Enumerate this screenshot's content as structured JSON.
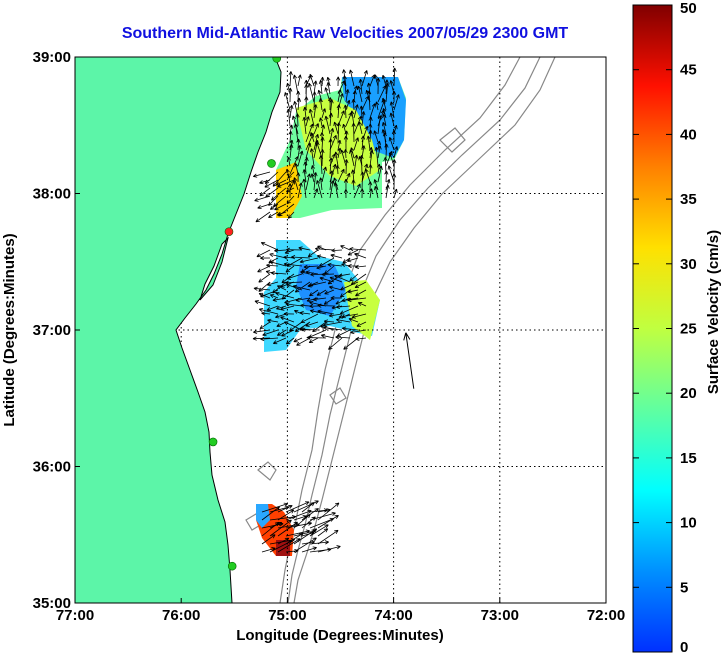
{
  "title": "Southern Mid-Atlantic Raw Velocities 2007/05/29 2300 GMT",
  "xlabel": "Longitude (Degrees:Minutes)",
  "ylabel": "Latitude (Degrees:Minutes)",
  "colorbar_label": "Surface Velocity (cm/s)",
  "x_ticks": [
    {
      "v": -77,
      "label": "77:00"
    },
    {
      "v": -76,
      "label": "76:00"
    },
    {
      "v": -75,
      "label": "75:00"
    },
    {
      "v": -74,
      "label": "74:00"
    },
    {
      "v": -73,
      "label": "73:00"
    },
    {
      "v": -72,
      "label": "72:00"
    }
  ],
  "y_ticks": [
    {
      "v": 35,
      "label": "35:00"
    },
    {
      "v": 36,
      "label": "36:00"
    },
    {
      "v": 37,
      "label": "37:00"
    },
    {
      "v": 38,
      "label": "38:00"
    },
    {
      "v": 39,
      "label": "39:00"
    }
  ],
  "colorbar_ticks": [
    "0",
    "5",
    "10",
    "15",
    "20",
    "25",
    "30",
    "35",
    "40",
    "45",
    "50"
  ],
  "colors": {
    "title": "#1010e0",
    "land": "#5cf5a8",
    "coast": "#000000",
    "station": "#22cc22",
    "station_offline": "#ff2020",
    "bathymetry": "#888888"
  },
  "chart_data": {
    "type": "map",
    "xlim": [
      -77,
      -72
    ],
    "ylim": [
      35,
      39
    ],
    "clim": [
      0,
      50
    ],
    "stations": [
      {
        "lon": -75.1,
        "lat": 38.99,
        "status": "active"
      },
      {
        "lon": -75.15,
        "lat": 38.22,
        "status": "active"
      },
      {
        "lon": -75.55,
        "lat": 37.72,
        "status": "offline"
      },
      {
        "lon": -75.7,
        "lat": 36.18,
        "status": "active"
      },
      {
        "lon": -75.52,
        "lat": 35.27,
        "status": "active"
      }
    ],
    "reference_vector": {
      "lon": -73.81,
      "lat": 36.57,
      "u": -0.05,
      "v": 0.35
    }
  }
}
